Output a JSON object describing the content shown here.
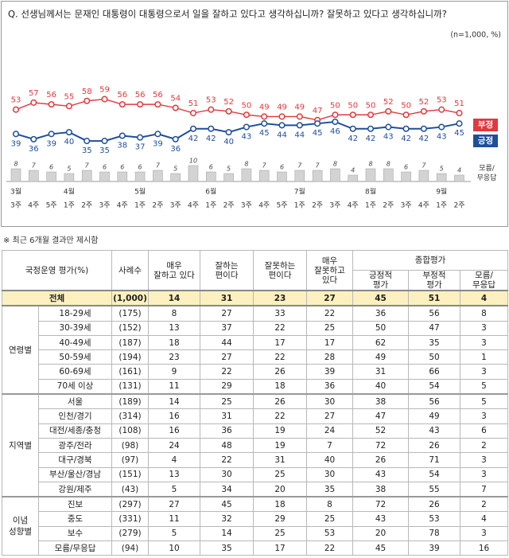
{
  "chart_data": {
    "type": "line",
    "title": "Q. 선생님께서는 문재인 대통령이 대통령으로서 일을 잘하고 있다고 생각하십니까? 잘못하고 있다고 생각하십니까?",
    "subtitle": "(n=1,000, %)",
    "categories": [
      "3주",
      "4주",
      "5주",
      "1주",
      "2주",
      "3주",
      "4주",
      "1주",
      "2주",
      "3주",
      "4주",
      "1주",
      "2주",
      "3주",
      "4주",
      "5주",
      "1주",
      "2주",
      "3주",
      "4주",
      "1주",
      "2주",
      "3주",
      "4주",
      "1주",
      "2주"
    ],
    "months": [
      {
        "label": "3월",
        "start": 0
      },
      {
        "label": "4월",
        "start": 3
      },
      {
        "label": "5월",
        "start": 7
      },
      {
        "label": "6월",
        "start": 11
      },
      {
        "label": "7월",
        "start": 16
      },
      {
        "label": "8월",
        "start": 20
      },
      {
        "label": "9월",
        "start": 24
      }
    ],
    "series": [
      {
        "name": "부정",
        "color": "#e0393e",
        "values": [
          53,
          57,
          56,
          55,
          58,
          59,
          56,
          56,
          56,
          54,
          51,
          53,
          52,
          50,
          49,
          49,
          49,
          47,
          50,
          50,
          50,
          52,
          50,
          52,
          53,
          51
        ]
      },
      {
        "name": "긍정",
        "color": "#1f4e9a",
        "values": [
          39,
          36,
          39,
          40,
          35,
          35,
          38,
          37,
          39,
          36,
          42,
          42,
          40,
          43,
          45,
          44,
          44,
          45,
          46,
          42,
          42,
          43,
          42,
          42,
          43,
          45
        ]
      },
      {
        "name": "모름/\n무응답",
        "color": "#d3d3d3",
        "axis": "y2",
        "type": "bar",
        "values": [
          8,
          7,
          6,
          5,
          7,
          6,
          6,
          6,
          7,
          5,
          10,
          6,
          5,
          8,
          7,
          6,
          7,
          7,
          8,
          4,
          8,
          8,
          6,
          7,
          5,
          4
        ]
      }
    ],
    "ylim": [
      30,
      62
    ],
    "y2lim": [
      0,
      40
    ]
  },
  "note": "※ 최근 6개월 결과만 제시함",
  "table": {
    "header": {
      "title": "국정운영 평가(%)",
      "sample": "사례수",
      "columns": [
        "매우\n잘하고 있다",
        "잘하는\n편이다",
        "잘못하는\n편이다",
        "매우\n잘못하고\n있다"
      ],
      "summary": "종합평가",
      "summary_columns": [
        "긍정적\n평가",
        "부정적\n평가",
        "모름/\n무응답"
      ]
    },
    "total": {
      "label": "전체",
      "values": [
        "(1,000)",
        14,
        31,
        23,
        27,
        45,
        51,
        4
      ]
    },
    "groups": [
      {
        "label": "연령별",
        "rows": [
          {
            "label": "18-29세",
            "values": [
              "(175)",
              8,
              27,
              33,
              22,
              36,
              56,
              8
            ]
          },
          {
            "label": "30-39세",
            "values": [
              "(152)",
              13,
              37,
              22,
              25,
              50,
              47,
              3
            ]
          },
          {
            "label": "40-49세",
            "values": [
              "(187)",
              18,
              44,
              17,
              17,
              62,
              35,
              3
            ]
          },
          {
            "label": "50-59세",
            "values": [
              "(194)",
              23,
              27,
              22,
              28,
              49,
              50,
              1
            ]
          },
          {
            "label": "60-69세",
            "values": [
              "(161)",
              9,
              22,
              26,
              39,
              31,
              66,
              3
            ]
          },
          {
            "label": "70세 이상",
            "values": [
              "(131)",
              11,
              29,
              18,
              36,
              40,
              54,
              5
            ]
          }
        ]
      },
      {
        "label": "지역별",
        "rows": [
          {
            "label": "서울",
            "values": [
              "(189)",
              14,
              25,
              26,
              30,
              38,
              56,
              5
            ]
          },
          {
            "label": "인천/경기",
            "values": [
              "(314)",
              16,
              31,
              22,
              27,
              47,
              49,
              3
            ]
          },
          {
            "label": "대전/세종/충청",
            "values": [
              "(108)",
              16,
              36,
              19,
              24,
              52,
              43,
              6
            ]
          },
          {
            "label": "광주/전라",
            "values": [
              "(98)",
              24,
              48,
              19,
              7,
              72,
              26,
              2
            ]
          },
          {
            "label": "대구/경북",
            "values": [
              "(97)",
              4,
              22,
              31,
              40,
              26,
              71,
              3
            ]
          },
          {
            "label": "부산/울산/경남",
            "values": [
              "(151)",
              13,
              30,
              25,
              30,
              43,
              54,
              3
            ]
          },
          {
            "label": "강원/제주",
            "values": [
              "(43)",
              5,
              34,
              20,
              35,
              38,
              55,
              7
            ]
          }
        ]
      },
      {
        "label": "이념\n성향별",
        "rows": [
          {
            "label": "진보",
            "values": [
              "(297)",
              27,
              45,
              18,
              8,
              72,
              26,
              2
            ]
          },
          {
            "label": "중도",
            "values": [
              "(331)",
              11,
              32,
              29,
              25,
              43,
              53,
              4
            ]
          },
          {
            "label": "보수",
            "values": [
              "(279)",
              5,
              14,
              25,
              53,
              20,
              78,
              3
            ]
          },
          {
            "label": "모름/무응답",
            "values": [
              "(94)",
              10,
              35,
              17,
              22,
              45,
              39,
              16
            ]
          }
        ]
      }
    ]
  }
}
